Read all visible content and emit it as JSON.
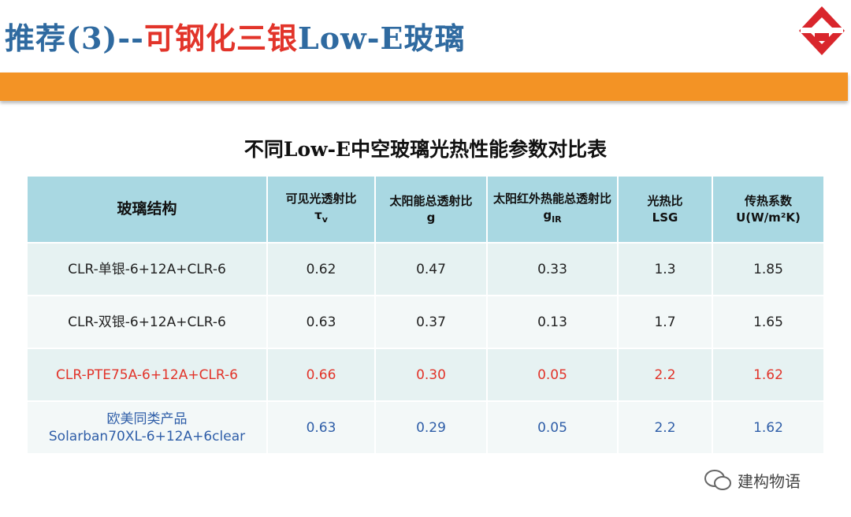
{
  "header": {
    "title_parts": [
      "推荐(3)--",
      "可钢化三银",
      "Low-E玻璃"
    ]
  },
  "table": {
    "title": "不同Low-E中空玻璃光热性能参数对比表",
    "headers": [
      {
        "text": "玻璃结构"
      },
      {
        "text": "可见光透射比",
        "symbol": "τ",
        "sub": "v"
      },
      {
        "text": "太阳能总透射比",
        "symbol": "g"
      },
      {
        "text": "太阳红外热能总透射比",
        "symbol": "g",
        "sub": "IR"
      },
      {
        "text": "光热比",
        "symbol": "LSG"
      },
      {
        "text": "传热系数",
        "symbol": "U(W/m²K)"
      }
    ],
    "rows": [
      [
        [
          "CLR-单银-6+12A+CLR-6"
        ],
        "0.62",
        "0.47",
        "0.33",
        "1.3",
        "1.85"
      ],
      [
        [
          "CLR-双银-6+12A+CLR-6"
        ],
        "0.63",
        "0.37",
        "0.13",
        "1.7",
        "1.65"
      ],
      [
        [
          "CLR-PTE75A-6+12A+CLR-6"
        ],
        "0.66",
        "0.30",
        "0.05",
        "2.2",
        "1.62"
      ],
      [
        [
          "欧美同类产品",
          "Solarban70XL-6+12A+6clear"
        ],
        "0.63",
        "0.29",
        "0.05",
        "2.2",
        "1.62"
      ]
    ]
  },
  "watermark": "建构物语"
}
